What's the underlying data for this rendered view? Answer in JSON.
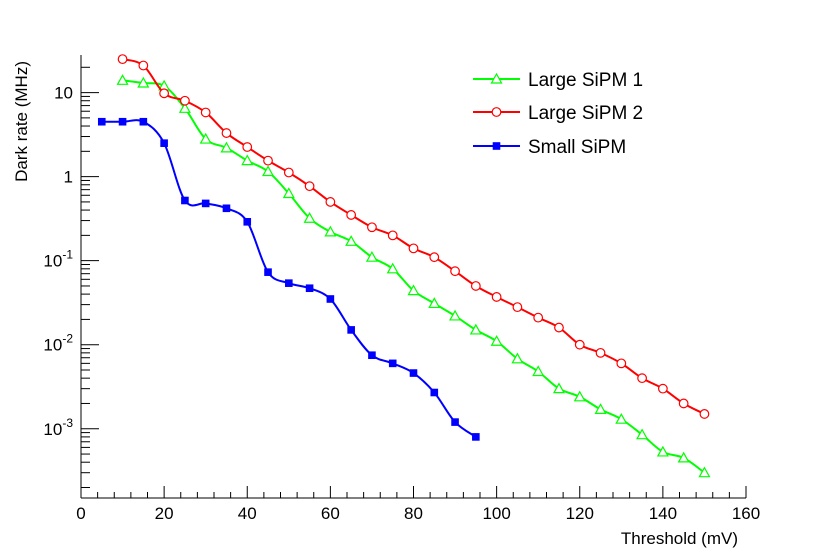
{
  "chart_data": {
    "type": "line",
    "title": "",
    "xlabel": "Threshold (mV)",
    "ylabel": "Dark rate (MHz)",
    "xlim": [
      0,
      160
    ],
    "ylim": [
      0.00015,
      28
    ],
    "yscale": "log",
    "grid": false,
    "legend_position": "top-right",
    "x_ticks": [
      0,
      20,
      40,
      60,
      80,
      100,
      120,
      140,
      160
    ],
    "x_tick_labels": [
      "0",
      "20",
      "40",
      "60",
      "80",
      "100",
      "120",
      "140",
      "160"
    ],
    "y_ticks": [
      {
        "value": 10,
        "base": "10",
        "exp": ""
      },
      {
        "value": 1,
        "base": "1",
        "exp": ""
      },
      {
        "value": 0.1,
        "base": "10",
        "exp": "-1"
      },
      {
        "value": 0.01,
        "base": "10",
        "exp": "-2"
      },
      {
        "value": 0.001,
        "base": "10",
        "exp": "-3"
      }
    ],
    "series": [
      {
        "name": "Large SiPM 1",
        "color": "#00ff00",
        "marker": "open-triangle",
        "x": [
          10,
          15,
          20,
          25,
          30,
          35,
          40,
          45,
          50,
          55,
          60,
          65,
          70,
          75,
          80,
          85,
          90,
          95,
          100,
          105,
          110,
          115,
          120,
          125,
          130,
          135,
          140,
          145,
          150
        ],
        "values": [
          14,
          13,
          12,
          6.5,
          2.8,
          2.2,
          1.55,
          1.15,
          0.63,
          0.32,
          0.22,
          0.17,
          0.11,
          0.08,
          0.044,
          0.031,
          0.022,
          0.015,
          0.011,
          0.0068,
          0.0048,
          0.003,
          0.0024,
          0.0017,
          0.0013,
          0.00085,
          0.00053,
          0.00045,
          0.0003
        ]
      },
      {
        "name": "Large SiPM 2",
        "color": "#ff0000",
        "marker": "open-circle",
        "x": [
          10,
          15,
          20,
          25,
          30,
          35,
          40,
          45,
          50,
          55,
          60,
          65,
          70,
          75,
          80,
          85,
          90,
          95,
          100,
          105,
          110,
          115,
          120,
          125,
          130,
          135,
          140,
          145,
          150
        ],
        "values": [
          25,
          21,
          9.8,
          8.0,
          5.8,
          3.3,
          2.25,
          1.55,
          1.12,
          0.77,
          0.5,
          0.35,
          0.25,
          0.2,
          0.14,
          0.11,
          0.075,
          0.05,
          0.037,
          0.028,
          0.021,
          0.016,
          0.01,
          0.008,
          0.006,
          0.004,
          0.003,
          0.002,
          0.0015
        ]
      },
      {
        "name": "Small SiPM",
        "color": "#0000ff",
        "marker": "filled-square",
        "x": [
          5,
          10,
          15,
          20,
          25,
          30,
          35,
          40,
          45,
          50,
          55,
          60,
          65,
          70,
          75,
          80,
          85,
          90,
          95
        ],
        "values": [
          4.5,
          4.5,
          4.5,
          2.5,
          0.52,
          0.48,
          0.42,
          0.29,
          0.073,
          0.054,
          0.047,
          0.035,
          0.015,
          0.0075,
          0.006,
          0.0046,
          0.0027,
          0.0012,
          0.0008
        ]
      }
    ]
  }
}
